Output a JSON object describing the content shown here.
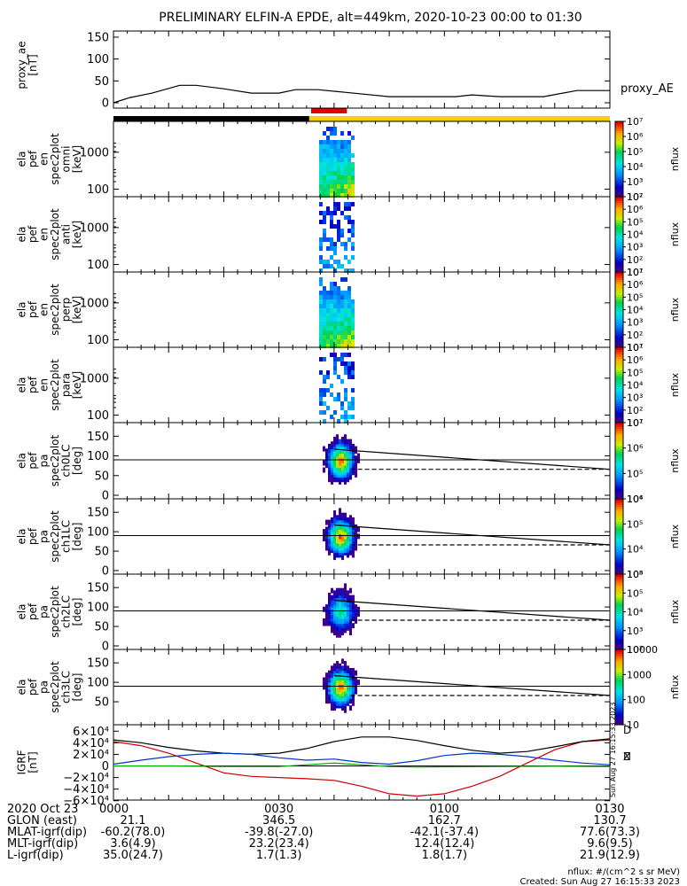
{
  "title": "PRELIMINARY ELFIN-A EPDE, alt=449km, 2020-10-23 00:00 to 01:30",
  "chart_data": [
    {
      "type": "line",
      "panel": "proxy_ae",
      "ylabel": [
        "proxy_ae",
        "[nT]"
      ],
      "series_label": "proxy_AE",
      "ylim": [
        0,
        160
      ],
      "yticks": [
        0,
        50,
        100,
        150
      ],
      "x_minutes": [
        0,
        3,
        7,
        12,
        15,
        20,
        25,
        30,
        33,
        37,
        42,
        50,
        58,
        62,
        65,
        70,
        78,
        84,
        90
      ],
      "values": [
        0,
        12,
        22,
        40,
        40,
        32,
        22,
        22,
        30,
        30,
        24,
        14,
        14,
        14,
        18,
        14,
        14,
        28,
        28
      ]
    },
    {
      "type": "bar",
      "panel": "science-zone-bar",
      "segments": [
        {
          "color": "#000000",
          "from_min": 0,
          "to_min": 35.5
        },
        {
          "color": "#f5d000",
          "from_min": 35.5,
          "to_min": 90
        }
      ],
      "red_marker": {
        "from_min": 36,
        "to_min": 42
      }
    },
    {
      "type": "heatmap",
      "panel": "en-omni",
      "ylabel": [
        "ela",
        "pef",
        "en",
        "spec2plot",
        "omni",
        "[keV]"
      ],
      "yticks": [
        "100",
        "1000"
      ],
      "zlabel": "nflux",
      "zticks": [
        "10²",
        "10³",
        "10⁴",
        "10⁵",
        "10⁶",
        "10⁷"
      ]
    },
    {
      "type": "heatmap",
      "panel": "en-anti",
      "ylabel": [
        "ela",
        "pef",
        "en",
        "spec2plot",
        "anti",
        "[keV]"
      ],
      "yticks": [
        "100",
        "1000"
      ],
      "zlabel": "nflux",
      "zticks": [
        "10¹",
        "10²",
        "10³",
        "10⁴",
        "10⁵",
        "10⁶",
        "10⁷"
      ]
    },
    {
      "type": "heatmap",
      "panel": "en-perp",
      "ylabel": [
        "ela",
        "pef",
        "en",
        "spec2plot",
        "perp",
        "[keV]"
      ],
      "yticks": [
        "100",
        "1000"
      ],
      "zlabel": "nflux",
      "zticks": [
        "10¹",
        "10²",
        "10³",
        "10⁴",
        "10⁵",
        "10⁶",
        "10⁷"
      ]
    },
    {
      "type": "heatmap",
      "panel": "en-para",
      "ylabel": [
        "ela",
        "pef",
        "en",
        "spec2plot",
        "para",
        "[keV]"
      ],
      "yticks": [
        "100",
        "1000"
      ],
      "zlabel": "nflux",
      "zticks": [
        "10¹",
        "10²",
        "10³",
        "10⁴",
        "10⁵",
        "10⁶",
        "10⁷"
      ]
    },
    {
      "type": "heatmap",
      "panel": "pa-ch0lc",
      "ylabel": [
        "ela",
        "pef",
        "pa",
        "spec2plot",
        "ch0LC",
        "[deg]"
      ],
      "yticks": [
        "0",
        "50",
        "100",
        "150"
      ],
      "zlabel": "nflux",
      "zticks": [
        "10⁴",
        "10⁵",
        "10⁶",
        "10⁷"
      ]
    },
    {
      "type": "heatmap",
      "panel": "pa-ch1lc",
      "ylabel": [
        "ela",
        "pef",
        "pa",
        "spec2plot",
        "ch1LC",
        "[deg]"
      ],
      "yticks": [
        "0",
        "50",
        "100",
        "150"
      ],
      "zlabel": "nflux",
      "zticks": [
        "10³",
        "10⁴",
        "10⁵",
        "10⁶"
      ]
    },
    {
      "type": "heatmap",
      "panel": "pa-ch2lc",
      "ylabel": [
        "ela",
        "pef",
        "pa",
        "spec2plot",
        "ch2LC",
        "[deg]"
      ],
      "yticks": [
        "0",
        "50",
        "100",
        "150"
      ],
      "zlabel": "nflux",
      "zticks": [
        "10²",
        "10³",
        "10⁴",
        "10⁵",
        "10⁶"
      ]
    },
    {
      "type": "heatmap",
      "panel": "pa-ch3lc",
      "ylabel": [
        "ela",
        "pef",
        "pa",
        "spec2plot",
        "ch3LC",
        "[deg]"
      ],
      "yticks": [
        "50",
        "100",
        "150"
      ],
      "zlabel": "nflux",
      "zticks": [
        "10",
        "100",
        "1000",
        "10000"
      ]
    },
    {
      "type": "line",
      "panel": "igrf",
      "ylabel": [
        "IGRF",
        "[nT]"
      ],
      "ylim": [
        -65000,
        65000
      ],
      "yticks": [
        "−6×10⁴",
        "−4×10⁴",
        "−2×10⁴",
        "0",
        "2×10⁴",
        "4×10⁴",
        "6×10⁴"
      ],
      "yvalues": [
        -60000,
        -40000,
        -20000,
        0,
        20000,
        40000,
        60000
      ],
      "legend": [
        "D",
        "N",
        "Z"
      ],
      "series": [
        {
          "name": "D",
          "color": "#cc0000",
          "x_minutes": [
            0,
            5,
            10,
            15,
            20,
            25,
            30,
            35,
            40,
            45,
            50,
            55,
            60,
            65,
            70,
            75,
            80,
            85,
            90
          ],
          "values": [
            42000,
            35000,
            22000,
            5000,
            -12000,
            -18000,
            -20000,
            -22000,
            -25000,
            -35000,
            -48000,
            -52000,
            -48000,
            -35000,
            -18000,
            5000,
            28000,
            42000,
            45000
          ]
        },
        {
          "name": "Z",
          "color": "#000000",
          "x_minutes": [
            0,
            5,
            10,
            15,
            20,
            25,
            30,
            35,
            40,
            45,
            50,
            55,
            60,
            65,
            70,
            75,
            80,
            85,
            90
          ],
          "values": [
            45000,
            40000,
            32000,
            26000,
            22000,
            20000,
            22000,
            30000,
            42000,
            50000,
            50000,
            44000,
            35000,
            27000,
            22000,
            25000,
            33000,
            42000,
            47000
          ]
        },
        {
          "name": "N",
          "color": "#0033cc",
          "x_minutes": [
            0,
            5,
            10,
            15,
            20,
            25,
            30,
            35,
            40,
            45,
            50,
            55,
            60,
            65,
            70,
            75,
            80,
            85,
            90
          ],
          "values": [
            3000,
            10000,
            16000,
            20000,
            22000,
            20000,
            14000,
            10000,
            12000,
            6000,
            3000,
            9000,
            18000,
            22000,
            20000,
            16000,
            10000,
            5000,
            2000
          ]
        },
        {
          "name": "green",
          "color": "#00aa00",
          "x_minutes": [
            0,
            10,
            20,
            30,
            35,
            40,
            45,
            50,
            55,
            60,
            70,
            80,
            90
          ],
          "values": [
            0,
            0,
            -1000,
            -1000,
            2000,
            5000,
            2000,
            -1000,
            -2000,
            -1500,
            -1000,
            -500,
            -1000
          ]
        }
      ]
    }
  ],
  "xaxis": {
    "row_label": "2020 Oct 23",
    "ticks": [
      {
        "min": 0,
        "label": "0000"
      },
      {
        "min": 30,
        "label": "0030"
      },
      {
        "min": 60,
        "label": "0100"
      },
      {
        "min": 90,
        "label": "0130"
      }
    ],
    "rows": [
      {
        "label": "GLON (east)",
        "values": [
          "21.1",
          "346.5",
          "162.7",
          "130.7"
        ]
      },
      {
        "label": "MLAT-igrf(dip)",
        "values": [
          "-60.2(78.0)",
          "-39.8(-27.0)",
          "-42.1(-37.4)",
          "77.6(73.3)"
        ]
      },
      {
        "label": "MLT-igrf(dip)",
        "values": [
          "3.6(4.9)",
          "23.2(23.4)",
          "12.4(12.4)",
          "9.6(9.5)"
        ]
      },
      {
        "label": "L-igrf(dip)",
        "values": [
          "35.0(24.7)",
          "1.7(1.3)",
          "1.8(1.7)",
          "21.9(12.9)"
        ]
      }
    ]
  },
  "footer": {
    "units": "nflux: #/(cm^2 s sr MeV)",
    "created": "Created: Sun Aug 27 16:15:33 2023",
    "side_stamp": "Sun Aug 27 16:15:33 2023"
  }
}
